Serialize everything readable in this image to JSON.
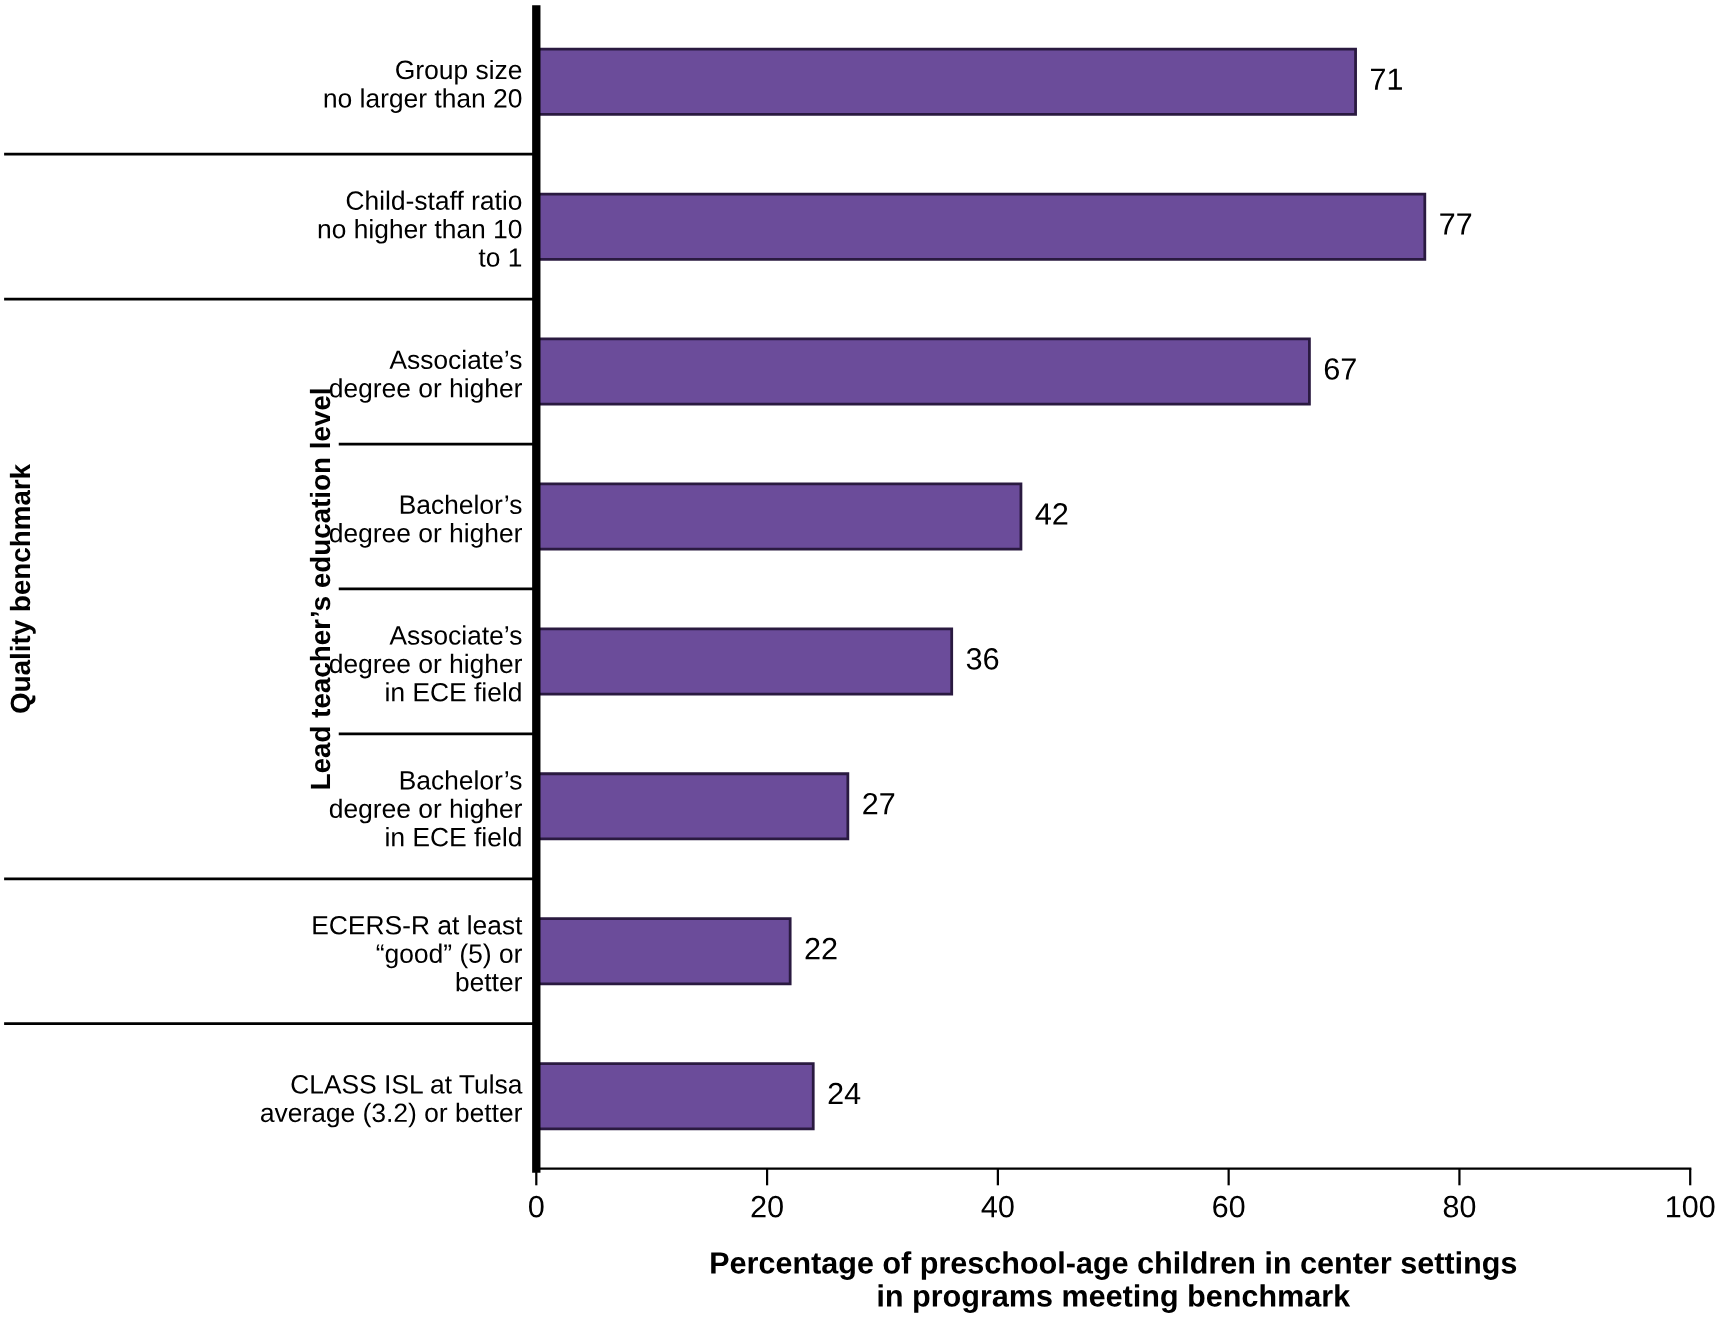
{
  "chart_data": {
    "type": "bar",
    "orientation": "horizontal",
    "categories": [
      "Group size\nno larger than 20",
      "Child-staff ratio\nno higher than 10\nto 1",
      "Associate’s\ndegree or higher",
      "Bachelor’s\ndegree or higher",
      "Associate’s\ndegree or higher\nin ECE field",
      "Bachelor’s\ndegree or higher\nin ECE field",
      "ECERS-R at least\n“good” (5) or\nbetter",
      "CLASS ISL at Tulsa\naverage (3.2) or better"
    ],
    "values": [
      71,
      77,
      67,
      42,
      36,
      27,
      22,
      24
    ],
    "color": "#6b4c9a",
    "xlim": [
      0,
      100
    ],
    "xticks": [
      0,
      20,
      40,
      60,
      80,
      100
    ],
    "xlabel": "Percentage of preschool-age children in center settings\nin programs meeting benchmark",
    "annotations": [
      "Lead teacher’s education level",
      "Quality benchmark"
    ],
    "data_labels": true,
    "grid": false
  }
}
